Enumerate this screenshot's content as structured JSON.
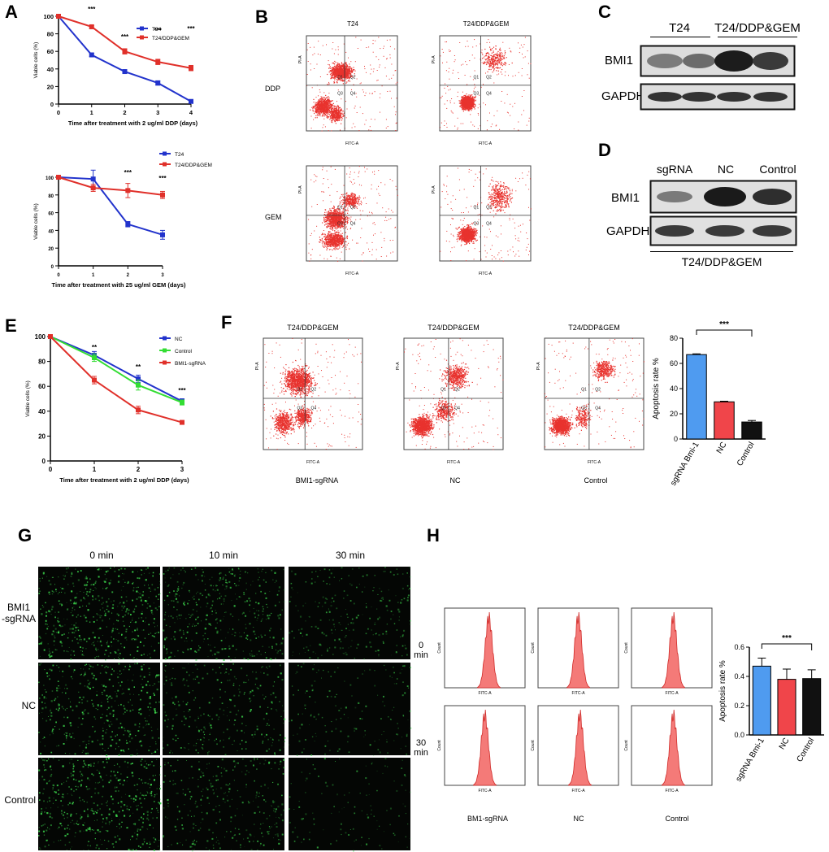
{
  "panels": {
    "A": "A",
    "B": "B",
    "C": "C",
    "D": "D",
    "E": "E",
    "F": "F",
    "G": "G",
    "H": "H"
  },
  "colors": {
    "blue": "#2233cc",
    "red": "#e0302a",
    "green": "#33dd33",
    "bar_blue": "#4f9bf0",
    "bar_red": "#f0454a",
    "bar_black": "#111111",
    "flow_red": "#e8322e",
    "hist_fill": "#f47a78",
    "green_cell": "#3bd24a"
  },
  "chart_data": [
    {
      "id": "A1",
      "type": "line",
      "x": [
        0,
        1,
        2,
        3,
        4
      ],
      "series": [
        {
          "name": "T24",
          "values": [
            100,
            56,
            37,
            24,
            3
          ]
        },
        {
          "name": "T24/DDP&GEM",
          "values": [
            100,
            88,
            60,
            48,
            41
          ]
        }
      ],
      "ylim": [
        0,
        100
      ],
      "yticks": [
        "0",
        "20",
        "40",
        "60",
        "80",
        "100"
      ],
      "xticks": [
        "0",
        "1",
        "2",
        "3",
        "4"
      ],
      "xlabel": "Time after treatment with 2 ug/ml DDP (days)",
      "ylabel": "Viable cells (%)",
      "annotations": [
        "***",
        "***",
        "***",
        "***"
      ]
    },
    {
      "id": "A2",
      "type": "line",
      "x": [
        0,
        1,
        2,
        3
      ],
      "series": [
        {
          "name": "T24",
          "values": [
            100,
            98,
            47,
            35
          ]
        },
        {
          "name": "T24/DDP&GEM",
          "values": [
            100,
            88,
            85,
            80
          ]
        }
      ],
      "ylim": [
        0,
        100
      ],
      "yticks": [
        "0",
        "20",
        "40",
        "60",
        "80",
        "100"
      ],
      "xticks": [
        "0",
        "1",
        "2",
        "3"
      ],
      "xlabel": "Time after treatment with 25 ug/ml GEM (days)",
      "ylabel": "Viable cells (%)",
      "annotations": [
        "***",
        "***"
      ]
    },
    {
      "id": "E",
      "type": "line",
      "x": [
        0,
        1,
        2,
        3
      ],
      "series": [
        {
          "name": "NC",
          "values": [
            100,
            85,
            66,
            48
          ]
        },
        {
          "name": "Control",
          "values": [
            100,
            83,
            61,
            47
          ]
        },
        {
          "name": "BMI1-sgRNA",
          "values": [
            100,
            65,
            41,
            31
          ]
        }
      ],
      "ylim": [
        0,
        100
      ],
      "yticks": [
        "0",
        "20",
        "40",
        "60",
        "80",
        "100"
      ],
      "xticks": [
        "0",
        "1",
        "2",
        "3"
      ],
      "xlabel": "Time after treatment with 2 ug/ml DDP (days)",
      "ylabel": "Viable cells (%)",
      "annotations": [
        "**",
        "**",
        "***"
      ]
    },
    {
      "id": "F",
      "type": "bar",
      "categories": [
        "sgRNA Bmi-1",
        "NC",
        "Control"
      ],
      "values": [
        67,
        29.5,
        13.5
      ],
      "ylim": [
        0,
        80
      ],
      "yticks": [
        "0",
        "20",
        "40",
        "60",
        "80"
      ],
      "ylabel": "Apoptosis rate %",
      "annotation": "***"
    },
    {
      "id": "H",
      "type": "bar",
      "categories": [
        "sgRNA Bmi-1",
        "NC",
        "Control"
      ],
      "values": [
        0.47,
        0.38,
        0.385
      ],
      "ylim": [
        0,
        0.6
      ],
      "yticks": [
        "0.0",
        "0.2",
        "0.4",
        "0.6"
      ],
      "ylabel": "Apoptosis rate %",
      "annotation": "***"
    }
  ],
  "flow_b": {
    "col_titles": [
      "T24",
      "T24/DDP&GEM"
    ],
    "row_labels": [
      "DDP",
      "GEM"
    ],
    "x_axis": "FITC-A",
    "y_axis": "PI-A",
    "quadrants": [
      "Q1",
      "Q2",
      "Q3",
      "Q4"
    ]
  },
  "western_c": {
    "groups": [
      "T24",
      "T24/DDP&GEM"
    ],
    "rows": [
      "BMI1",
      "GAPDH"
    ]
  },
  "western_d": {
    "lanes": [
      "sgRNA",
      "NC",
      "Control"
    ],
    "rows": [
      "BMI1",
      "GAPDH"
    ],
    "footer": "T24/DDP&GEM"
  },
  "flow_f": {
    "titles": [
      "T24/DDP&GEM",
      "T24/DDP&GEM",
      "T24/DDP&GEM"
    ],
    "captions": [
      "BMI1-sgRNA",
      "NC",
      "Control"
    ],
    "x_axis": "FITC-A",
    "y_axis": "PI-A"
  },
  "micro_g": {
    "cols": [
      "0 min",
      "10 min",
      "30 min"
    ],
    "rows": [
      "BMI1\n-sgRNA",
      "NC",
      "Control"
    ]
  },
  "hist_h": {
    "rows": [
      "0\nmin",
      "30\nmin"
    ],
    "captions": [
      "BM1-sgRNA",
      "NC",
      "Control"
    ],
    "x_axis": "FITC-A",
    "y_axis": "Count"
  }
}
